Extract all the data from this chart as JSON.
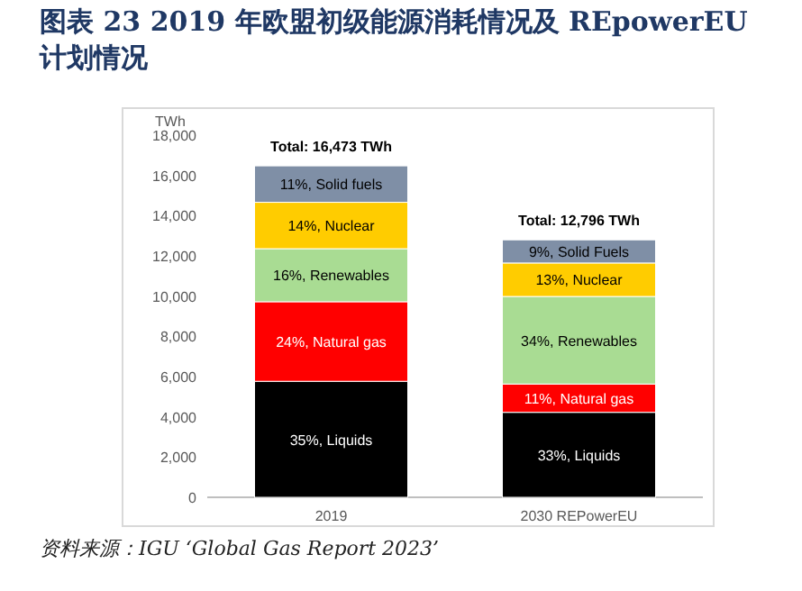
{
  "chart_data": {
    "type": "bar",
    "title": "图表 23 2019 年欧盟初级能源消耗情况及 REpowerEU 计划情况",
    "ylabel": "TWh",
    "stacked": true,
    "categories": [
      "2019",
      "2030 REPowerEU"
    ],
    "series": [
      {
        "color": "#000000",
        "values": [
          5766,
          4223
        ]
      },
      {
        "color": "#ff0000",
        "values": [
          3954,
          1408
        ]
      },
      {
        "color": "#a9dc93",
        "values": [
          2636,
          4351
        ]
      },
      {
        "color": "#ffcc00",
        "values": [
          2306,
          1664
        ]
      },
      {
        "color": "#7f8fa6",
        "values": [
          1811,
          1150
        ]
      }
    ],
    "totals": [
      "Total: 16,473 TWh",
      "Total: 12,796 TWh"
    ],
    "ylim": [
      0,
      18000
    ],
    "yticks": [
      0,
      {
        "value": 2000,
        "label": "2,000"
      },
      {
        "value": 4000,
        "label": "4,000"
      },
      {
        "value": 6000,
        "label": "6,000"
      },
      {
        "value": 8000,
        "label": "8,000"
      },
      {
        "value": 10000,
        "label": "10,000"
      },
      {
        "value": 12000,
        "label": "12,000"
      },
      {
        "value": 14000,
        "label": "14,000"
      },
      {
        "value": 16000,
        "label": "16,000"
      },
      {
        "value": 18000,
        "label": "18,000"
      }
    ],
    "annotations": [
      "资料来源：IGU ‘Global Gas Report 2023’",
      "35%, Liquids",
      "24%, Natural gas",
      "16%, Renewables",
      "14%, Nuclear",
      "11%, Solid fuels",
      "33%, Liquids",
      "11%, Natural gas",
      "34%, Renewables",
      "13%, Nuclear",
      "9%, Solid Fuels"
    ]
  }
}
